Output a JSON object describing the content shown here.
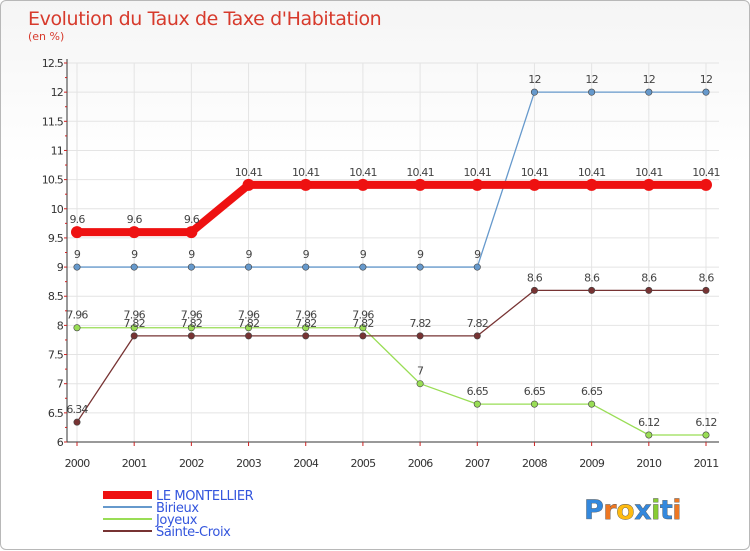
{
  "chart_data": {
    "type": "line",
    "title": "Evolution du Taux de Taxe d'Habitation",
    "subtitle": "(en %)",
    "xlabel": "",
    "ylabel": "",
    "categories": [
      "2000",
      "2001",
      "2002",
      "2003",
      "2004",
      "2005",
      "2006",
      "2007",
      "2008",
      "2009",
      "2010",
      "2011"
    ],
    "ylim": [
      6,
      12.5
    ],
    "yticks": [
      6,
      6.5,
      7,
      7.5,
      8,
      8.5,
      9,
      9.5,
      10,
      10.5,
      11,
      11.5,
      12,
      12.5
    ],
    "ytick_labels": [
      "6",
      "6.5",
      "7",
      "7.5",
      "8",
      "8.5",
      "9",
      "9.5",
      "10",
      "10.5",
      "11",
      "11.5",
      "12",
      "12.5"
    ],
    "grid": true,
    "legend_position": "bottom-left",
    "series": [
      {
        "name": "LE MONTELLIER",
        "color": "#ee1111",
        "values": [
          9.6,
          9.6,
          9.6,
          10.41,
          10.41,
          10.41,
          10.41,
          10.41,
          10.41,
          10.41,
          10.41,
          10.41
        ],
        "labels": [
          "9.6",
          "9.6",
          "9.6",
          "10.41",
          "10.41",
          "10.41",
          "10.41",
          "10.41",
          "10.41",
          "10.41",
          "10.41",
          "10.41"
        ]
      },
      {
        "name": "Birieux",
        "color": "#6699cc",
        "values": [
          9,
          9,
          9,
          9,
          9,
          9,
          9,
          9,
          12,
          12,
          12,
          12
        ],
        "labels": [
          "9",
          "9",
          "9",
          "9",
          "9",
          "9",
          "9",
          "9",
          "12",
          "12",
          "12",
          "12"
        ]
      },
      {
        "name": "Joyeux",
        "color": "#99dd55",
        "values": [
          7.96,
          7.96,
          7.96,
          7.96,
          7.96,
          7.96,
          7,
          6.65,
          6.65,
          6.65,
          6.12,
          6.12
        ],
        "labels": [
          "7.96",
          "7.96",
          "7.96",
          "7.96",
          "7.96",
          "7.96",
          "7",
          "6.65",
          "6.65",
          "6.65",
          "6.12",
          "6.12"
        ]
      },
      {
        "name": "Sainte-Croix",
        "color": "#773333",
        "values": [
          6.34,
          7.82,
          7.82,
          7.82,
          7.82,
          7.82,
          7.82,
          7.82,
          8.6,
          8.6,
          8.6,
          8.6
        ],
        "labels": [
          "6.34",
          "7.82",
          "7.82",
          "7.82",
          "7.82",
          "7.82",
          "7.82",
          "7.82",
          "8.6",
          "8.6",
          "8.6",
          "8.6"
        ]
      }
    ]
  },
  "brand": {
    "letters": [
      "P",
      "r",
      "o",
      "x",
      "i",
      "t",
      "i"
    ],
    "colors": [
      "#3388dd",
      "#ee7722",
      "#ffbb11",
      "#3388dd",
      "#88cc33",
      "#3388dd",
      "#ee7722"
    ]
  }
}
